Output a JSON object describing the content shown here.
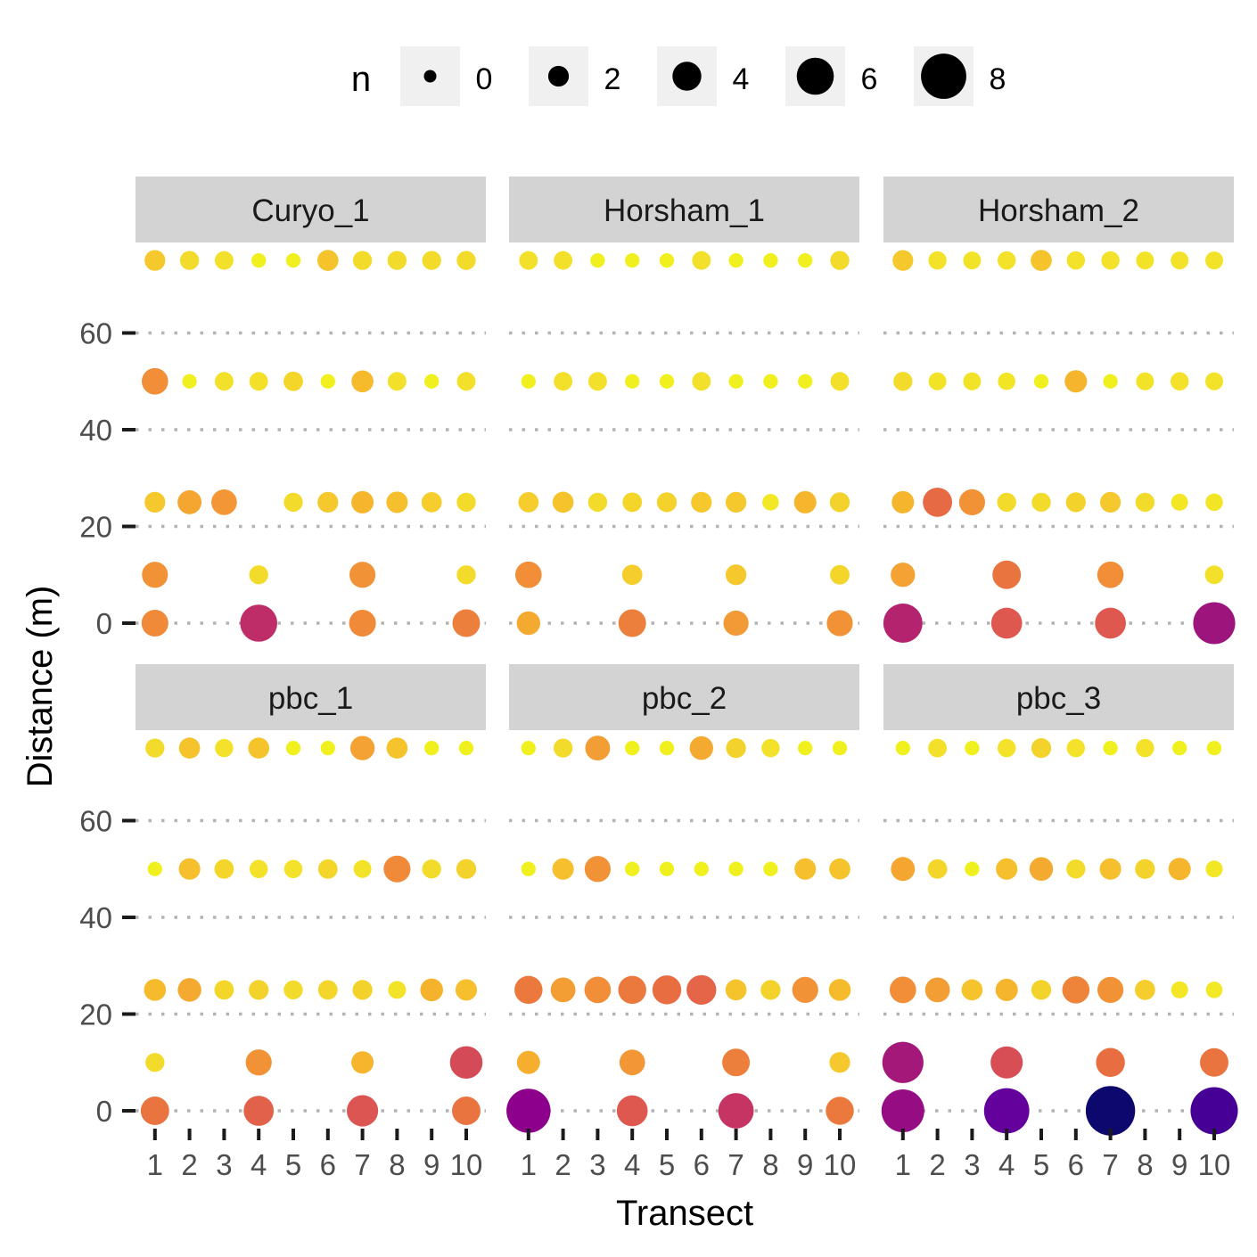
{
  "chart_data": {
    "type": "scatter",
    "xlabel": "Transect",
    "ylabel": "Distance (m)",
    "x_ticks": [
      "1",
      "2",
      "3",
      "4",
      "5",
      "6",
      "7",
      "8",
      "9",
      "10"
    ],
    "y_ticks": [
      0,
      20,
      40,
      60
    ],
    "xlim": [
      0.5,
      10.5
    ],
    "ylim": [
      -5,
      80
    ],
    "grid": "dotted horizontal",
    "legend": {
      "title": "n",
      "position": "top",
      "values": [
        0,
        2,
        4,
        6,
        8
      ],
      "labels": [
        "0",
        "2",
        "4",
        "6",
        "8"
      ]
    },
    "distances": [
      0,
      10,
      25,
      50,
      75
    ],
    "panels": [
      {
        "name": "Curyo_1",
        "points": [
          [
            1,
            0,
            3.5
          ],
          [
            4,
            0,
            6.0
          ],
          [
            7,
            0,
            3.5
          ],
          [
            10,
            0,
            3.7
          ],
          [
            1,
            10,
            3.3
          ],
          [
            4,
            10,
            1.6
          ],
          [
            7,
            10,
            3.3
          ],
          [
            10,
            10,
            1.6
          ],
          [
            1,
            25,
            2.0
          ],
          [
            2,
            25,
            2.8
          ],
          [
            3,
            25,
            3.2
          ],
          [
            5,
            25,
            1.6
          ],
          [
            6,
            25,
            2.0
          ],
          [
            7,
            25,
            2.4
          ],
          [
            8,
            25,
            2.2
          ],
          [
            9,
            25,
            1.9
          ],
          [
            10,
            25,
            1.6
          ],
          [
            1,
            50,
            3.4
          ],
          [
            2,
            50,
            0.5
          ],
          [
            3,
            50,
            1.5
          ],
          [
            4,
            50,
            1.5
          ],
          [
            5,
            50,
            1.7
          ],
          [
            6,
            50,
            0.5
          ],
          [
            7,
            50,
            2.3
          ],
          [
            8,
            50,
            1.5
          ],
          [
            9,
            50,
            0.5
          ],
          [
            10,
            50,
            1.5
          ],
          [
            1,
            75,
            2.0
          ],
          [
            2,
            75,
            1.6
          ],
          [
            3,
            75,
            1.5
          ],
          [
            4,
            75,
            0.5
          ],
          [
            5,
            75,
            0.5
          ],
          [
            6,
            75,
            2.1
          ],
          [
            7,
            75,
            1.6
          ],
          [
            8,
            75,
            1.6
          ],
          [
            9,
            75,
            1.6
          ],
          [
            10,
            75,
            1.6
          ]
        ]
      },
      {
        "name": "Horsham_1",
        "points": [
          [
            1,
            0,
            2.7
          ],
          [
            4,
            0,
            3.7
          ],
          [
            7,
            0,
            3.1
          ],
          [
            10,
            0,
            3.3
          ],
          [
            1,
            10,
            3.4
          ],
          [
            4,
            10,
            1.9
          ],
          [
            7,
            10,
            2.0
          ],
          [
            10,
            10,
            1.7
          ],
          [
            1,
            25,
            1.9
          ],
          [
            2,
            25,
            2.1
          ],
          [
            3,
            25,
            1.6
          ],
          [
            4,
            25,
            1.7
          ],
          [
            5,
            25,
            1.8
          ],
          [
            6,
            25,
            2.0
          ],
          [
            7,
            25,
            2.0
          ],
          [
            8,
            25,
            1.0
          ],
          [
            9,
            25,
            2.4
          ],
          [
            10,
            25,
            1.8
          ],
          [
            1,
            50,
            0.5
          ],
          [
            2,
            50,
            1.5
          ],
          [
            3,
            50,
            1.5
          ],
          [
            4,
            50,
            0.5
          ],
          [
            5,
            50,
            0.5
          ],
          [
            6,
            50,
            1.5
          ],
          [
            7,
            50,
            0.5
          ],
          [
            8,
            50,
            0.5
          ],
          [
            9,
            50,
            0.5
          ],
          [
            10,
            50,
            1.5
          ],
          [
            1,
            75,
            1.5
          ],
          [
            2,
            75,
            1.5
          ],
          [
            3,
            75,
            0.5
          ],
          [
            4,
            75,
            0.5
          ],
          [
            5,
            75,
            0.5
          ],
          [
            6,
            75,
            1.5
          ],
          [
            7,
            75,
            0.5
          ],
          [
            8,
            75,
            0.5
          ],
          [
            9,
            75,
            0.5
          ],
          [
            10,
            75,
            1.6
          ]
        ]
      },
      {
        "name": "Horsham_2",
        "points": [
          [
            1,
            0,
            6.5
          ],
          [
            4,
            0,
            4.5
          ],
          [
            7,
            0,
            4.5
          ],
          [
            10,
            0,
            7.2
          ],
          [
            1,
            10,
            2.9
          ],
          [
            4,
            10,
            3.9
          ],
          [
            7,
            10,
            3.4
          ],
          [
            10,
            10,
            1.5
          ],
          [
            1,
            25,
            2.4
          ],
          [
            2,
            25,
            4.1
          ],
          [
            3,
            25,
            3.3
          ],
          [
            4,
            25,
            1.6
          ],
          [
            5,
            25,
            1.6
          ],
          [
            6,
            25,
            1.8
          ],
          [
            7,
            25,
            2.0
          ],
          [
            8,
            25,
            1.6
          ],
          [
            9,
            25,
            1.1
          ],
          [
            10,
            25,
            1.2
          ],
          [
            1,
            50,
            1.6
          ],
          [
            2,
            50,
            1.3
          ],
          [
            3,
            50,
            1.3
          ],
          [
            4,
            50,
            1.2
          ],
          [
            5,
            50,
            0.5
          ],
          [
            6,
            50,
            2.4
          ],
          [
            7,
            50,
            0.5
          ],
          [
            8,
            50,
            1.3
          ],
          [
            9,
            50,
            1.4
          ],
          [
            10,
            50,
            1.3
          ],
          [
            1,
            75,
            2.0
          ],
          [
            2,
            75,
            1.4
          ],
          [
            3,
            75,
            1.3
          ],
          [
            4,
            75,
            1.4
          ],
          [
            5,
            75,
            2.1
          ],
          [
            6,
            75,
            1.4
          ],
          [
            7,
            75,
            1.4
          ],
          [
            8,
            75,
            1.3
          ],
          [
            9,
            75,
            1.3
          ],
          [
            10,
            75,
            1.3
          ]
        ]
      },
      {
        "name": "pbc_1",
        "points": [
          [
            1,
            0,
            3.9
          ],
          [
            4,
            0,
            4.3
          ],
          [
            7,
            0,
            4.6
          ],
          [
            10,
            0,
            3.9
          ],
          [
            1,
            10,
            1.6
          ],
          [
            4,
            10,
            3.3
          ],
          [
            7,
            10,
            2.4
          ],
          [
            10,
            10,
            4.9
          ],
          [
            1,
            25,
            2.3
          ],
          [
            2,
            25,
            2.7
          ],
          [
            3,
            25,
            1.7
          ],
          [
            4,
            25,
            1.8
          ],
          [
            5,
            25,
            1.6
          ],
          [
            6,
            25,
            1.7
          ],
          [
            7,
            25,
            1.8
          ],
          [
            8,
            25,
            1.3
          ],
          [
            9,
            25,
            2.5
          ],
          [
            10,
            25,
            2.2
          ],
          [
            1,
            50,
            0.5
          ],
          [
            2,
            50,
            2.2
          ],
          [
            3,
            50,
            1.7
          ],
          [
            4,
            50,
            1.4
          ],
          [
            5,
            50,
            1.4
          ],
          [
            6,
            50,
            1.7
          ],
          [
            7,
            50,
            1.3
          ],
          [
            8,
            50,
            3.5
          ],
          [
            9,
            50,
            1.6
          ],
          [
            10,
            50,
            1.8
          ],
          [
            1,
            75,
            1.6
          ],
          [
            2,
            75,
            2.1
          ],
          [
            3,
            75,
            1.4
          ],
          [
            4,
            75,
            2.1
          ],
          [
            5,
            75,
            0.5
          ],
          [
            6,
            75,
            0.5
          ],
          [
            7,
            75,
            2.9
          ],
          [
            8,
            75,
            2.1
          ],
          [
            9,
            75,
            0.5
          ],
          [
            10,
            75,
            0.5
          ]
        ]
      },
      {
        "name": "pbc_2",
        "points": [
          [
            1,
            0,
            7.7
          ],
          [
            4,
            0,
            4.5
          ],
          [
            7,
            0,
            5.6
          ],
          [
            10,
            0,
            3.8
          ],
          [
            1,
            10,
            2.6
          ],
          [
            4,
            10,
            3.2
          ],
          [
            7,
            10,
            3.7
          ],
          [
            10,
            10,
            2.0
          ],
          [
            1,
            25,
            3.8
          ],
          [
            2,
            25,
            3.0
          ],
          [
            3,
            25,
            3.4
          ],
          [
            4,
            25,
            3.8
          ],
          [
            5,
            25,
            4.0
          ],
          [
            6,
            25,
            4.2
          ],
          [
            7,
            25,
            2.1
          ],
          [
            8,
            25,
            1.8
          ],
          [
            9,
            25,
            3.3
          ],
          [
            10,
            25,
            2.3
          ],
          [
            1,
            50,
            0.5
          ],
          [
            2,
            50,
            2.2
          ],
          [
            3,
            50,
            3.3
          ],
          [
            4,
            50,
            0.5
          ],
          [
            5,
            50,
            0.5
          ],
          [
            6,
            50,
            0.5
          ],
          [
            7,
            50,
            0.5
          ],
          [
            8,
            50,
            0.5
          ],
          [
            9,
            50,
            2.2
          ],
          [
            10,
            50,
            2.1
          ],
          [
            1,
            75,
            0.5
          ],
          [
            2,
            75,
            1.6
          ],
          [
            3,
            75,
            3.0
          ],
          [
            4,
            75,
            0.5
          ],
          [
            5,
            75,
            0.5
          ],
          [
            6,
            75,
            2.7
          ],
          [
            7,
            75,
            1.8
          ],
          [
            8,
            75,
            1.4
          ],
          [
            9,
            75,
            0.5
          ],
          [
            10,
            75,
            0.5
          ]
        ]
      },
      {
        "name": "pbc_3",
        "points": [
          [
            1,
            0,
            7.4
          ],
          [
            4,
            0,
            8.0
          ],
          [
            7,
            0,
            9.0
          ],
          [
            10,
            0,
            8.5
          ],
          [
            1,
            10,
            7.0
          ],
          [
            4,
            10,
            4.8
          ],
          [
            7,
            10,
            4.0
          ],
          [
            10,
            10,
            3.9
          ],
          [
            1,
            25,
            3.4
          ],
          [
            2,
            25,
            3.0
          ],
          [
            3,
            25,
            2.1
          ],
          [
            4,
            25,
            2.4
          ],
          [
            5,
            25,
            1.8
          ],
          [
            6,
            25,
            3.6
          ],
          [
            7,
            25,
            3.3
          ],
          [
            8,
            25,
            1.9
          ],
          [
            9,
            25,
            1.1
          ],
          [
            10,
            25,
            1.0
          ],
          [
            1,
            50,
            2.8
          ],
          [
            2,
            50,
            1.7
          ],
          [
            3,
            50,
            0.5
          ],
          [
            4,
            50,
            2.2
          ],
          [
            5,
            50,
            2.7
          ],
          [
            6,
            50,
            1.6
          ],
          [
            7,
            50,
            2.2
          ],
          [
            8,
            50,
            1.8
          ],
          [
            9,
            50,
            2.4
          ],
          [
            10,
            50,
            1.1
          ],
          [
            1,
            75,
            0.5
          ],
          [
            2,
            75,
            1.5
          ],
          [
            3,
            75,
            0.5
          ],
          [
            4,
            75,
            1.4
          ],
          [
            5,
            75,
            1.8
          ],
          [
            6,
            75,
            1.4
          ],
          [
            7,
            75,
            0.5
          ],
          [
            8,
            75,
            1.4
          ],
          [
            9,
            75,
            0.5
          ],
          [
            10,
            75,
            0.5
          ]
        ]
      }
    ]
  }
}
